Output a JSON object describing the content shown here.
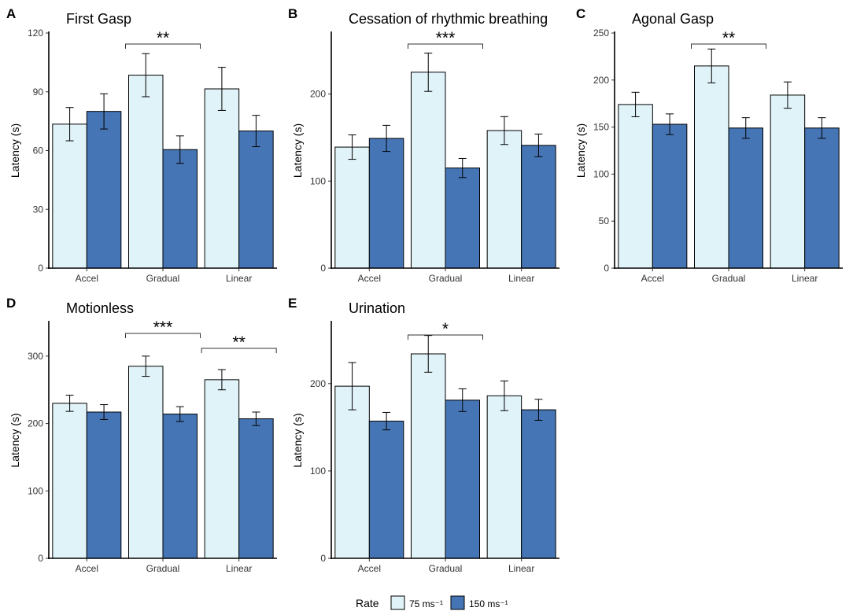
{
  "chart_data": [
    {
      "panel": "A",
      "type": "bar",
      "title": "First Gasp",
      "xlabel": "",
      "ylabel": "Latency (s)",
      "ylim": [
        0,
        120
      ],
      "yticks": [
        0,
        30,
        60,
        90,
        120
      ],
      "categories": [
        "Accel",
        "Gradual",
        "Linear"
      ],
      "series": [
        {
          "name": "75 ms⁻¹",
          "values": [
            73.5,
            98.5,
            91.5
          ],
          "errors": [
            8.5,
            11,
            11
          ]
        },
        {
          "name": "150 ms⁻¹",
          "values": [
            80,
            60.5,
            70
          ],
          "errors": [
            9,
            7,
            8
          ]
        }
      ],
      "significance": [
        {
          "label": "**",
          "group": "Gradual",
          "span": "group"
        }
      ]
    },
    {
      "panel": "B",
      "type": "bar",
      "title": "Cessation of rhythmic breathing",
      "xlabel": "",
      "ylabel": "Latency (s)",
      "ylim": [
        0,
        270
      ],
      "yticks": [
        0,
        100,
        200
      ],
      "categories": [
        "Accel",
        "Gradual",
        "Linear"
      ],
      "series": [
        {
          "name": "75 ms⁻¹",
          "values": [
            139,
            225,
            158
          ],
          "errors": [
            14,
            22,
            16
          ]
        },
        {
          "name": "150 ms⁻¹",
          "values": [
            149,
            115,
            141
          ],
          "errors": [
            15,
            11,
            13
          ]
        }
      ],
      "significance": [
        {
          "label": "***",
          "group": "Gradual",
          "span": "group"
        }
      ]
    },
    {
      "panel": "C",
      "type": "bar",
      "title": "Agonal Gasp",
      "xlabel": "",
      "ylabel": "Latency (s)",
      "ylim": [
        0,
        250
      ],
      "yticks": [
        0,
        50,
        100,
        150,
        200,
        250
      ],
      "categories": [
        "Accel",
        "Gradual",
        "Linear"
      ],
      "series": [
        {
          "name": "75 ms⁻¹",
          "values": [
            174,
            215,
            184
          ],
          "errors": [
            13,
            18,
            14
          ]
        },
        {
          "name": "150 ms⁻¹",
          "values": [
            153,
            149,
            149
          ],
          "errors": [
            11,
            11,
            11
          ]
        }
      ],
      "significance": [
        {
          "label": "**",
          "group": "Gradual",
          "span": "group"
        }
      ]
    },
    {
      "panel": "D",
      "type": "bar",
      "title": "Motionless",
      "xlabel": "",
      "ylabel": "Latency (s)",
      "ylim": [
        0,
        350
      ],
      "yticks": [
        0,
        100,
        200,
        300
      ],
      "categories": [
        "Accel",
        "Gradual",
        "Linear"
      ],
      "series": [
        {
          "name": "75 ms⁻¹",
          "values": [
            230,
            285,
            265
          ],
          "errors": [
            12,
            15,
            15
          ]
        },
        {
          "name": "150 ms⁻¹",
          "values": [
            217,
            214,
            207
          ],
          "errors": [
            11,
            11,
            10
          ]
        }
      ],
      "significance": [
        {
          "label": "***",
          "group": "Gradual",
          "span": "group"
        },
        {
          "label": "**",
          "group": "Linear",
          "span": "group"
        }
      ]
    },
    {
      "panel": "E",
      "type": "bar",
      "title": "Urination",
      "xlabel": "",
      "ylabel": "Latency (s)",
      "ylim": [
        0,
        270
      ],
      "yticks": [
        0,
        100,
        200
      ],
      "categories": [
        "Accel",
        "Gradual",
        "Linear"
      ],
      "series": [
        {
          "name": "75 ms⁻¹",
          "values": [
            197,
            234,
            186
          ],
          "errors": [
            27,
            21,
            17
          ]
        },
        {
          "name": "150 ms⁻¹",
          "values": [
            157,
            181,
            170
          ],
          "errors": [
            10,
            13,
            12
          ]
        }
      ],
      "significance": [
        {
          "label": "*",
          "group": "Gradual",
          "span": "group"
        }
      ]
    }
  ],
  "legend": {
    "title": "Rate",
    "entries": [
      {
        "label": "75 ms⁻¹",
        "color": "#e0f3f8"
      },
      {
        "label": "150 ms⁻¹",
        "color": "#4575b4"
      }
    ]
  },
  "colors": {
    "series": [
      "#e0f3f8",
      "#4575b4"
    ],
    "bar_outline": "#000000",
    "axis": "#000000"
  }
}
